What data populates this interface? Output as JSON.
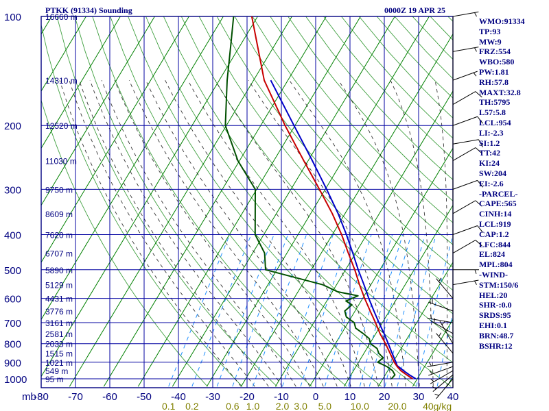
{
  "header": {
    "station": "PTKK (91334) Sounding",
    "time": "0000Z 19 APR 25"
  },
  "indices": [
    "WMO:91334",
    "TP:93",
    "MW:9",
    "FRZ:554",
    "WBO:580",
    "PW:1.81",
    "RH:57.8",
    "MAXT:32.8",
    "TH:5795",
    "L57:5.8",
    "LCL:954",
    "LI:-2.3",
    "SI:1.2",
    "TT:42",
    "KI:24",
    "SW:204",
    "EI:-2.6",
    "-PARCEL-",
    "CAPE:565",
    "CINH:14",
    "LCL:919",
    "CAP:1.2",
    "LFC:844",
    "EL:824",
    "MPL:804",
    "-WIND-",
    "STM:150/6",
    "HEL:20",
    "SHR-:0.0",
    "SRDS:95",
    "EHI:0.1",
    "BRN:48.7",
    "BSHR:12"
  ],
  "colors": {
    "frame": "#000080",
    "isobar": "#0000a0",
    "isotherm": "#008000",
    "dry_adiabat": "#008000",
    "moist_adiabat": "#000000",
    "mixing_ratio": "#1e8fff",
    "parcel": "#0000c8",
    "temperature": "#c80000",
    "dewpoint": "#005000",
    "mixing_label": "#808000"
  },
  "chart_data": {
    "type": "skew-t",
    "title": "PTKK (91334) Sounding",
    "pressure_axis": {
      "unit": "mb",
      "levels": [
        100,
        200,
        300,
        400,
        500,
        600,
        700,
        800,
        900,
        1000
      ],
      "tick_labels": [
        "100",
        "200",
        "300",
        "400",
        "500",
        "600",
        "700",
        "800",
        "900",
        "1000"
      ],
      "range": [
        100,
        1050
      ]
    },
    "temperature_axis": {
      "unit": "°C",
      "range": [
        -80,
        40
      ],
      "tick_labels": [
        "-80",
        "-70",
        "-60",
        "-50",
        "-40",
        "-30",
        "-20",
        "-10",
        "0",
        "10",
        "20",
        "30",
        "40"
      ]
    },
    "height_labels": [
      {
        "p": 100,
        "label": "16660 m"
      },
      {
        "p": 150,
        "label": "14310 m"
      },
      {
        "p": 200,
        "label": "12520 m"
      },
      {
        "p": 250,
        "label": "11030 m"
      },
      {
        "p": 300,
        "label": "9750 m"
      },
      {
        "p": 350,
        "label": "8609 m"
      },
      {
        "p": 400,
        "label": "7620 m"
      },
      {
        "p": 450,
        "label": "6707 m"
      },
      {
        "p": 500,
        "label": "5890 m"
      },
      {
        "p": 550,
        "label": "5129 m"
      },
      {
        "p": 600,
        "label": "4431 m"
      },
      {
        "p": 650,
        "label": "3776 m"
      },
      {
        "p": 700,
        "label": "3161 m"
      },
      {
        "p": 750,
        "label": "2581 m"
      },
      {
        "p": 800,
        "label": "2033 m"
      },
      {
        "p": 850,
        "label": "1515 m"
      },
      {
        "p": 900,
        "label": "1021 m"
      },
      {
        "p": 950,
        "label": "549 m"
      },
      {
        "p": 1000,
        "label": "95 m"
      }
    ],
    "mixing_ratio_labels": [
      {
        "w": 0.1,
        "label": "0.1"
      },
      {
        "w": 0.2,
        "label": "0.2"
      },
      {
        "w": 0.6,
        "label": "0.6"
      },
      {
        "w": 1.0,
        "label": "1.0"
      },
      {
        "w": 2.0,
        "label": "2.0"
      },
      {
        "w": 3.0,
        "label": "3.0"
      },
      {
        "w": 5.0,
        "label": "5.0"
      },
      {
        "w": 10.0,
        "label": "10.0"
      },
      {
        "w": 20.0,
        "label": "20.0"
      },
      {
        "w": 40.0,
        "label": "40g/kg"
      }
    ],
    "mixing_ratio_lines": [
      0.1,
      0.2,
      0.4,
      0.6,
      1.0,
      2.0,
      3.0,
      5.0,
      8.0,
      10.0,
      12.0,
      16.0,
      20.0,
      28.0,
      40.0
    ],
    "corner_unit_label": "mb",
    "series": [
      {
        "name": "temperature",
        "points": [
          {
            "p": 1000,
            "t": 28.6
          },
          {
            "p": 975,
            "t": 26.2
          },
          {
            "p": 950,
            "t": 23.8
          },
          {
            "p": 925,
            "t": 22.0
          },
          {
            "p": 900,
            "t": 20.4
          },
          {
            "p": 850,
            "t": 17.6
          },
          {
            "p": 800,
            "t": 14.6
          },
          {
            "p": 750,
            "t": 11.2
          },
          {
            "p": 700,
            "t": 8.0
          },
          {
            "p": 650,
            "t": 4.4
          },
          {
            "p": 600,
            "t": 0.6
          },
          {
            "p": 550,
            "t": -3.3
          },
          {
            "p": 500,
            "t": -7.3
          },
          {
            "p": 450,
            "t": -12.1
          },
          {
            "p": 400,
            "t": -17.3
          },
          {
            "p": 350,
            "t": -23.7
          },
          {
            "p": 300,
            "t": -31.7
          },
          {
            "p": 250,
            "t": -41.3
          },
          {
            "p": 200,
            "t": -52.9
          },
          {
            "p": 150,
            "t": -66.9
          },
          {
            "p": 100,
            "t": -81.7
          }
        ]
      },
      {
        "name": "dewpoint",
        "points": [
          {
            "p": 1000,
            "t": 22.5
          },
          {
            "p": 975,
            "t": 22.8
          },
          {
            "p": 950,
            "t": 21.4
          },
          {
            "p": 925,
            "t": 19.0
          },
          {
            "p": 900,
            "t": 15.6
          },
          {
            "p": 875,
            "t": 16.4
          },
          {
            "p": 850,
            "t": 14.3
          },
          {
            "p": 825,
            "t": 13.0
          },
          {
            "p": 800,
            "t": 10.2
          },
          {
            "p": 775,
            "t": 9.0
          },
          {
            "p": 750,
            "t": 6.3
          },
          {
            "p": 725,
            "t": 3.2
          },
          {
            "p": 700,
            "t": 1.8
          },
          {
            "p": 675,
            "t": -1.5
          },
          {
            "p": 650,
            "t": -3.0
          },
          {
            "p": 625,
            "t": -2.0
          },
          {
            "p": 610,
            "t": -4.4
          },
          {
            "p": 590,
            "t": -1.8
          },
          {
            "p": 575,
            "t": -8.5
          },
          {
            "p": 550,
            "t": -14.0
          },
          {
            "p": 500,
            "t": -33.3
          },
          {
            "p": 450,
            "t": -36.5
          },
          {
            "p": 400,
            "t": -42.5
          },
          {
            "p": 300,
            "t": -50.4
          },
          {
            "p": 250,
            "t": -60.5
          },
          {
            "p": 200,
            "t": -70.3
          },
          {
            "p": 150,
            "t": -77.7
          },
          {
            "p": 120,
            "t": -82.8
          },
          {
            "p": 100,
            "t": -87.0
          }
        ]
      },
      {
        "name": "parcel",
        "points": [
          {
            "p": 1000,
            "t": 29.6
          },
          {
            "p": 975,
            "t": 27.0
          },
          {
            "p": 950,
            "t": 24.6
          },
          {
            "p": 919,
            "t": 21.8
          },
          {
            "p": 900,
            "t": 20.9
          },
          {
            "p": 850,
            "t": 18.2
          },
          {
            "p": 800,
            "t": 15.4
          },
          {
            "p": 750,
            "t": 12.4
          },
          {
            "p": 700,
            "t": 9.0
          },
          {
            "p": 650,
            "t": 5.5
          },
          {
            "p": 600,
            "t": 1.8
          },
          {
            "p": 550,
            "t": -2.0
          },
          {
            "p": 500,
            "t": -6.3
          },
          {
            "p": 450,
            "t": -10.8
          },
          {
            "p": 400,
            "t": -15.9
          },
          {
            "p": 350,
            "t": -22.0
          },
          {
            "p": 300,
            "t": -29.6
          },
          {
            "p": 250,
            "t": -38.8
          },
          {
            "p": 200,
            "t": -50.3
          },
          {
            "p": 150,
            "t": -65.0
          }
        ]
      }
    ],
    "wind_barbs": [
      {
        "p": 1000,
        "dir": 220,
        "spd": 5
      },
      {
        "p": 975,
        "dir": 230,
        "spd": 5
      },
      {
        "p": 950,
        "dir": 240,
        "spd": 5
      },
      {
        "p": 925,
        "dir": 250,
        "spd": 5
      },
      {
        "p": 900,
        "dir": 260,
        "spd": 5
      },
      {
        "p": 850,
        "dir": 320,
        "spd": 5
      },
      {
        "p": 800,
        "dir": 330,
        "spd": 5
      },
      {
        "p": 750,
        "dir": 300,
        "spd": 5
      },
      {
        "p": 700,
        "dir": 280,
        "spd": 5
      },
      {
        "p": 650,
        "dir": 290,
        "spd": 5
      },
      {
        "p": 600,
        "dir": 320,
        "spd": 5
      },
      {
        "p": 550,
        "dir": 80,
        "spd": 5
      },
      {
        "p": 500,
        "dir": 90,
        "spd": 5
      },
      {
        "p": 450,
        "dir": 60,
        "spd": 10
      },
      {
        "p": 400,
        "dir": 70,
        "spd": 10
      },
      {
        "p": 350,
        "dir": 60,
        "spd": 10
      },
      {
        "p": 300,
        "dir": 70,
        "spd": 10
      },
      {
        "p": 250,
        "dir": 60,
        "spd": 10
      },
      {
        "p": 225,
        "dir": 80,
        "spd": 10
      },
      {
        "p": 200,
        "dir": 70,
        "spd": 10
      },
      {
        "p": 175,
        "dir": 60,
        "spd": 10
      },
      {
        "p": 150,
        "dir": 70,
        "spd": 5
      },
      {
        "p": 125,
        "dir": 80,
        "spd": 5
      },
      {
        "p": 100,
        "dir": 80,
        "spd": 5
      }
    ]
  }
}
